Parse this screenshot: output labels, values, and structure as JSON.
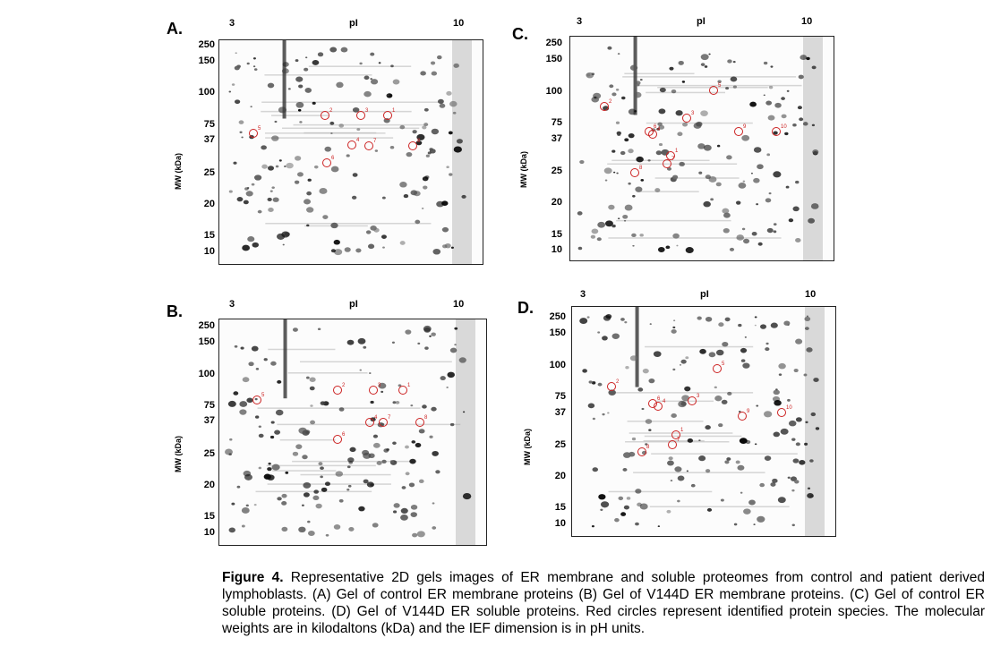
{
  "figure": {
    "caption_label": "Figure 4.",
    "caption_text": "Representative 2D gels images of ER membrane and soluble proteomes from control and patient derived lymphoblasts. (A) Gel of control ER membrane proteins (B) Gel of V144D ER membrane proteins. (C) Gel of control ER soluble proteins. (D) Gel of V144D ER soluble proteins. Red circles represent identified protein species. The molecular weights are in kilodaltons (kDa) and the IEF dimension is in pH units."
  },
  "panels": [
    {
      "letter": "A.",
      "ph_low": "3",
      "ph_mid": "pI",
      "ph_high": "10",
      "ylabel": "MW (kDa)",
      "mw": [
        "250",
        "150",
        "100",
        "75",
        "37",
        "25",
        "20",
        "15",
        "10"
      ],
      "spots": [
        "1",
        "2",
        "3",
        "4",
        "5",
        "6",
        "7",
        "8"
      ]
    },
    {
      "letter": "B.",
      "ph_low": "3",
      "ph_mid": "pI",
      "ph_high": "10",
      "ylabel": "MW (kDa)",
      "mw": [
        "250",
        "150",
        "100",
        "75",
        "37",
        "25",
        "20",
        "15",
        "10"
      ],
      "spots": [
        "1",
        "2",
        "3",
        "4",
        "5",
        "6",
        "7",
        "8"
      ]
    },
    {
      "letter": "C.",
      "ph_low": "3",
      "ph_mid": "pI",
      "ph_high": "10",
      "ylabel": "MW (kDa)",
      "mw": [
        "250",
        "150",
        "100",
        "75",
        "37",
        "25",
        "20",
        "15",
        "10"
      ],
      "spots": [
        "1",
        "2",
        "3",
        "4",
        "5",
        "6",
        "7",
        "8",
        "9",
        "10"
      ]
    },
    {
      "letter": "D.",
      "ph_low": "3",
      "ph_mid": "pI",
      "ph_high": "10",
      "ylabel": "MW (kDa)",
      "mw": [
        "250",
        "150",
        "100",
        "75",
        "37",
        "25",
        "20",
        "15",
        "10"
      ],
      "spots": [
        "1",
        "2",
        "3",
        "4",
        "5",
        "6",
        "7",
        "8",
        "9",
        "10"
      ]
    }
  ],
  "colors": {
    "circle": "#cc2222",
    "spot": "#111111",
    "border": "#222222"
  }
}
